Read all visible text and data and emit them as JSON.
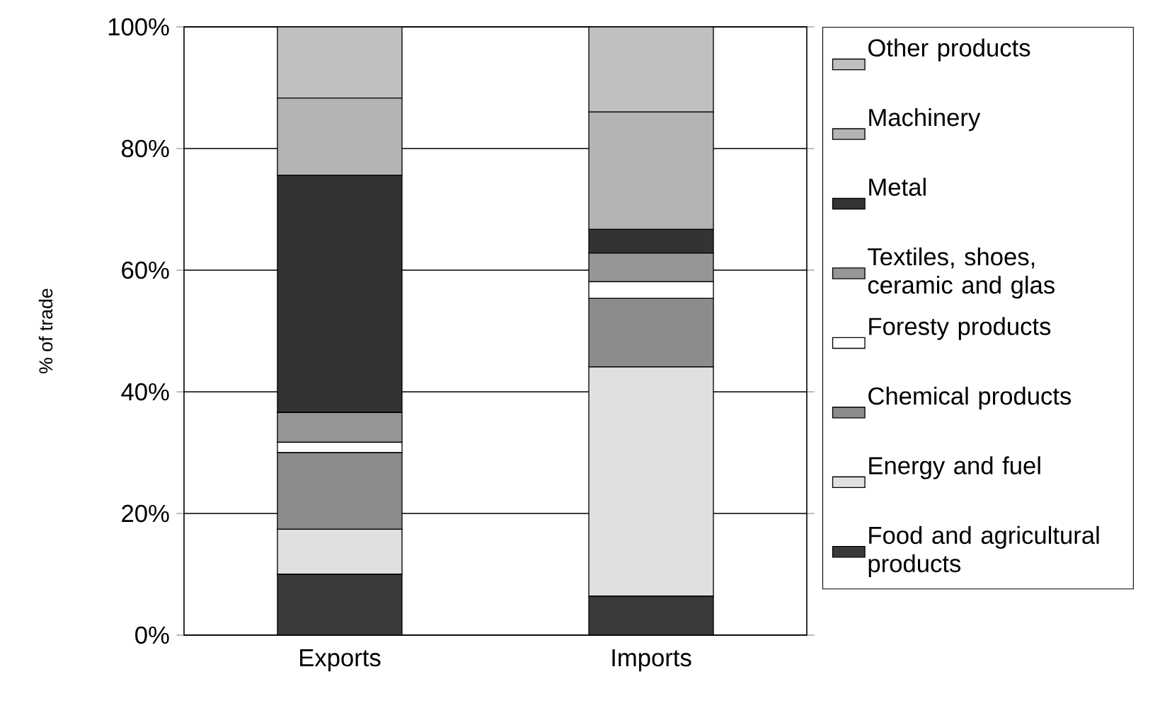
{
  "chart_data": {
    "type": "bar",
    "stacked": true,
    "ylabel": "% of trade",
    "categories": [
      "Exports",
      "Imports"
    ],
    "series": [
      {
        "name": "Food and agricultural products",
        "color": "#3a3a3a",
        "values": [
          10.0,
          6.4
        ]
      },
      {
        "name": "Energy and fuel",
        "color": "#e0e0e0",
        "values": [
          7.4,
          37.7
        ]
      },
      {
        "name": "Chemical products",
        "color": "#8c8c8c",
        "values": [
          12.6,
          11.3
        ]
      },
      {
        "name": "Foresty products",
        "color": "#ffffff",
        "values": [
          1.7,
          2.7
        ]
      },
      {
        "name": "Textiles, shoes, ceramic and glas",
        "color": "#969696",
        "values": [
          4.9,
          4.7
        ]
      },
      {
        "name": "Metal",
        "color": "#333333",
        "values": [
          39.0,
          3.9
        ]
      },
      {
        "name": "Machinery",
        "color": "#b4b4b4",
        "values": [
          12.7,
          19.3
        ]
      },
      {
        "name": "Other products",
        "color": "#c0c0c0",
        "values": [
          11.7,
          14.0
        ]
      }
    ],
    "ylim": [
      0,
      100
    ],
    "yticks": [
      {
        "value": 0,
        "label": "0%"
      },
      {
        "value": 20,
        "label": "20%"
      },
      {
        "value": 40,
        "label": "40%"
      },
      {
        "value": 60,
        "label": "60%"
      },
      {
        "value": 80,
        "label": "80%"
      },
      {
        "value": 100,
        "label": "100%"
      }
    ],
    "grid": "y",
    "legend": "right"
  }
}
